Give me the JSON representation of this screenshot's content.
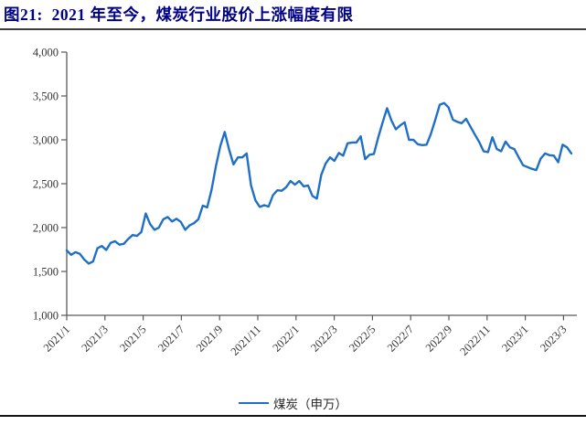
{
  "figure": {
    "title": "图21:  2021 年至今，煤炭行业股价上涨幅度有限",
    "legend_label": "煤炭（申万）"
  },
  "colors": {
    "title_text": "#000082",
    "line": "#1F70C5",
    "axis": "#595959",
    "tick_text": "#333333"
  },
  "chart_data": {
    "type": "line",
    "title": "2021 年至今，煤炭行业股价上涨幅度有限",
    "xlabel": "",
    "ylabel": "",
    "ylim": [
      1000,
      4000
    ],
    "y_step": 500,
    "grid": false,
    "legend": {
      "position": "bottom",
      "entries": [
        "煤炭（申万）"
      ]
    },
    "y_tick_labels": [
      "4,000",
      "3,500",
      "3,000",
      "2,500",
      "2,000",
      "1,500",
      "1,000"
    ],
    "x_tick_labels": [
      "2021/1",
      "2021/3",
      "2021/5",
      "2021/7",
      "2021/9",
      "2021/11",
      "2022/1",
      "2022/3",
      "2022/5",
      "2022/7",
      "2022/9",
      "2022/11",
      "2023/1",
      "2023/3"
    ],
    "x_unit": "weekly",
    "series": [
      {
        "name": "煤炭（申万）",
        "values": [
          1740,
          1690,
          1720,
          1700,
          1635,
          1590,
          1615,
          1765,
          1790,
          1745,
          1825,
          1845,
          1805,
          1815,
          1870,
          1915,
          1905,
          1950,
          2160,
          2040,
          1975,
          2000,
          2095,
          2120,
          2070,
          2100,
          2065,
          1975,
          2025,
          2050,
          2095,
          2250,
          2230,
          2430,
          2700,
          2930,
          3090,
          2890,
          2720,
          2800,
          2800,
          2845,
          2480,
          2310,
          2235,
          2255,
          2240,
          2370,
          2425,
          2420,
          2460,
          2530,
          2490,
          2530,
          2470,
          2480,
          2360,
          2330,
          2600,
          2730,
          2800,
          2760,
          2850,
          2820,
          2960,
          2970,
          2970,
          3040,
          2780,
          2830,
          2840,
          3030,
          3200,
          3360,
          3220,
          3120,
          3165,
          3200,
          3000,
          3000,
          2950,
          2940,
          2945,
          3070,
          3230,
          3400,
          3420,
          3370,
          3230,
          3205,
          3190,
          3240,
          3150,
          3060,
          2975,
          2870,
          2860,
          3030,
          2895,
          2870,
          2980,
          2915,
          2895,
          2800,
          2710,
          2690,
          2670,
          2655,
          2785,
          2845,
          2825,
          2820,
          2745,
          2945,
          2915,
          2845
        ]
      }
    ]
  }
}
